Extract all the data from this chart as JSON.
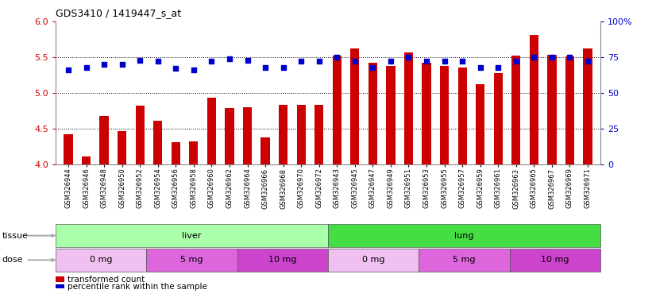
{
  "title": "GDS3410 / 1419447_s_at",
  "samples": [
    "GSM326944",
    "GSM326946",
    "GSM326948",
    "GSM326950",
    "GSM326952",
    "GSM326954",
    "GSM326956",
    "GSM326958",
    "GSM326960",
    "GSM326962",
    "GSM326964",
    "GSM326966",
    "GSM326968",
    "GSM326970",
    "GSM326972",
    "GSM326943",
    "GSM326945",
    "GSM326947",
    "GSM326949",
    "GSM326951",
    "GSM326953",
    "GSM326955",
    "GSM326957",
    "GSM326959",
    "GSM326961",
    "GSM326963",
    "GSM326965",
    "GSM326967",
    "GSM326969",
    "GSM326971"
  ],
  "bar_values": [
    4.43,
    4.12,
    4.68,
    4.47,
    4.82,
    4.61,
    4.31,
    4.32,
    4.94,
    4.79,
    4.8,
    4.38,
    4.83,
    4.83,
    4.83,
    5.52,
    5.62,
    5.42,
    5.38,
    5.57,
    5.42,
    5.38,
    5.36,
    5.12,
    5.28,
    5.52,
    5.81,
    5.53,
    5.51,
    5.62
  ],
  "dot_values_pct": [
    66,
    68,
    70,
    70,
    73,
    72,
    67,
    66,
    72,
    74,
    73,
    68,
    68,
    72,
    72,
    75,
    72,
    68,
    72,
    75,
    72,
    72,
    72,
    68,
    68,
    72,
    75,
    75,
    75,
    72
  ],
  "bar_color": "#cc0000",
  "dot_color": "#0000cc",
  "ylim_left": [
    4.0,
    6.0
  ],
  "ylim_right": [
    0,
    100
  ],
  "yticks_left": [
    4.0,
    4.5,
    5.0,
    5.5,
    6.0
  ],
  "yticks_right": [
    0,
    25,
    50,
    75,
    100
  ],
  "grid_values": [
    4.5,
    5.0,
    5.5
  ],
  "tissue_groups": [
    {
      "label": "liver",
      "start": 0,
      "end": 15,
      "color": "#aaffaa"
    },
    {
      "label": "lung",
      "start": 15,
      "end": 30,
      "color": "#44dd44"
    }
  ],
  "dose_groups": [
    {
      "label": "0 mg",
      "start": 0,
      "end": 5,
      "color": "#f0c0f0"
    },
    {
      "label": "5 mg",
      "start": 5,
      "end": 10,
      "color": "#dd66dd"
    },
    {
      "label": "10 mg",
      "start": 10,
      "end": 15,
      "color": "#cc44cc"
    },
    {
      "label": "0 mg",
      "start": 15,
      "end": 20,
      "color": "#f0c0f0"
    },
    {
      "label": "5 mg",
      "start": 20,
      "end": 25,
      "color": "#dd66dd"
    },
    {
      "label": "10 mg",
      "start": 25,
      "end": 30,
      "color": "#cc44cc"
    }
  ],
  "legend_bar_label": "transformed count",
  "legend_dot_label": "percentile rank within the sample",
  "tissue_label": "tissue",
  "dose_label": "dose",
  "bg_color": "#ffffff",
  "plot_bg_color": "#ffffff"
}
